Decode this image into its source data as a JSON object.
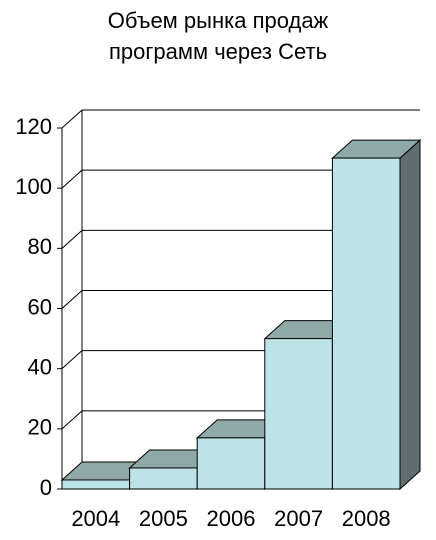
{
  "chart_data": {
    "type": "bar3d",
    "title": [
      "Объем рынка продаж",
      "программ через Сеть"
    ],
    "categories": [
      "2004",
      "2005",
      "2006",
      "2007",
      "2008"
    ],
    "values": [
      3,
      7,
      17,
      50,
      110
    ],
    "color": "#bde3e8",
    "top_color": "#8fa8a8",
    "side_color": "#5f6e72",
    "ylim": [
      0,
      120
    ],
    "yticks": [
      0,
      20,
      40,
      60,
      80,
      100,
      120
    ],
    "grid": true
  }
}
